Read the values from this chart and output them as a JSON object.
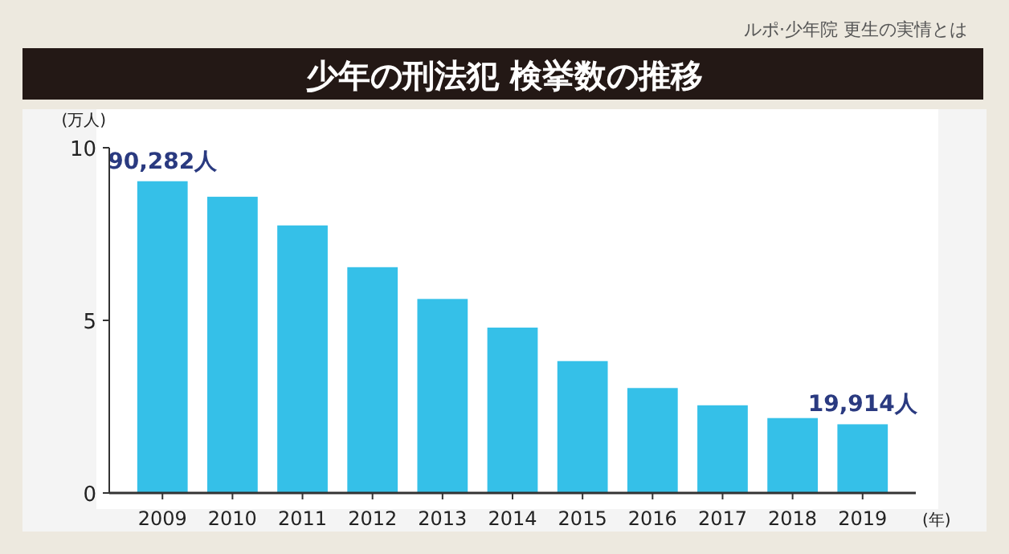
{
  "chart_data": {
    "type": "bar",
    "title": "少年の刑法犯  検挙数の推移",
    "ylabel": "(万人)",
    "xlabel": "(年)",
    "annotations": [
      "ルポ·少年院 更生の実情とは",
      {
        "text": "90,282人",
        "x": "2009",
        "y": 9.03
      },
      {
        "text": "19,914人",
        "x": "2019",
        "y": 1.99
      }
    ],
    "categories": [
      "2009",
      "2010",
      "2011",
      "2012",
      "2013",
      "2014",
      "2015",
      "2016",
      "2017",
      "2018",
      "2019"
    ],
    "values": [
      9.03,
      8.58,
      7.75,
      6.54,
      5.62,
      4.79,
      3.82,
      3.04,
      2.54,
      2.17,
      1.99
    ],
    "color": "#35c0e8",
    "ylim": [
      0,
      10
    ],
    "yticks": [
      0,
      5,
      10
    ],
    "grid": false
  }
}
